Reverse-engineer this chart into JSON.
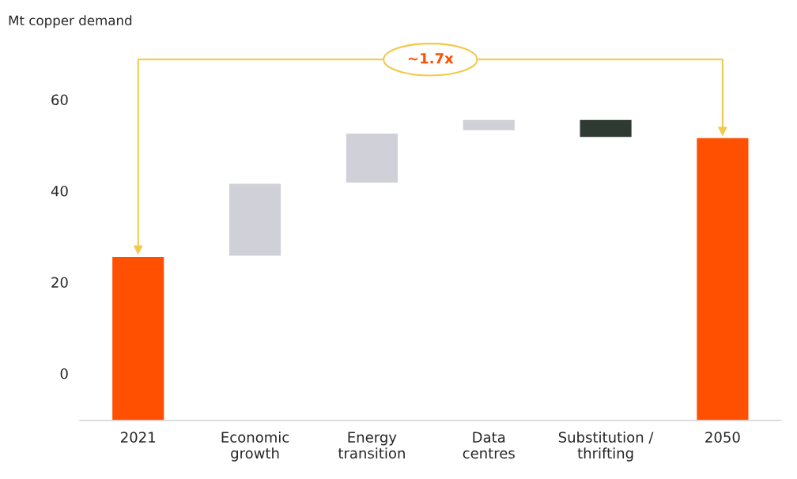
{
  "chart_data": {
    "type": "bar",
    "categories": [
      "2021",
      "Economic\ngrowth",
      "Energy\ntransition",
      "Data\ncentres",
      "Substitution /\nthrifting",
      "2050"
    ],
    "base": [
      -10,
      26,
      42,
      53.5,
      52,
      -10
    ],
    "values": [
      36,
      16,
      11,
      2.5,
      4,
      62
    ],
    "colors": [
      "#ff4f00",
      "#d0d0d8",
      "#d0d0d8",
      "#d0d0d8",
      "#2f3a33",
      "#ff4f00"
    ],
    "ylim": [
      -10,
      60
    ],
    "yticks": [
      0,
      20,
      40,
      60
    ],
    "grid": false,
    "legend": false,
    "annotations": [
      "Mt copper demand",
      "~1.7x"
    ]
  }
}
